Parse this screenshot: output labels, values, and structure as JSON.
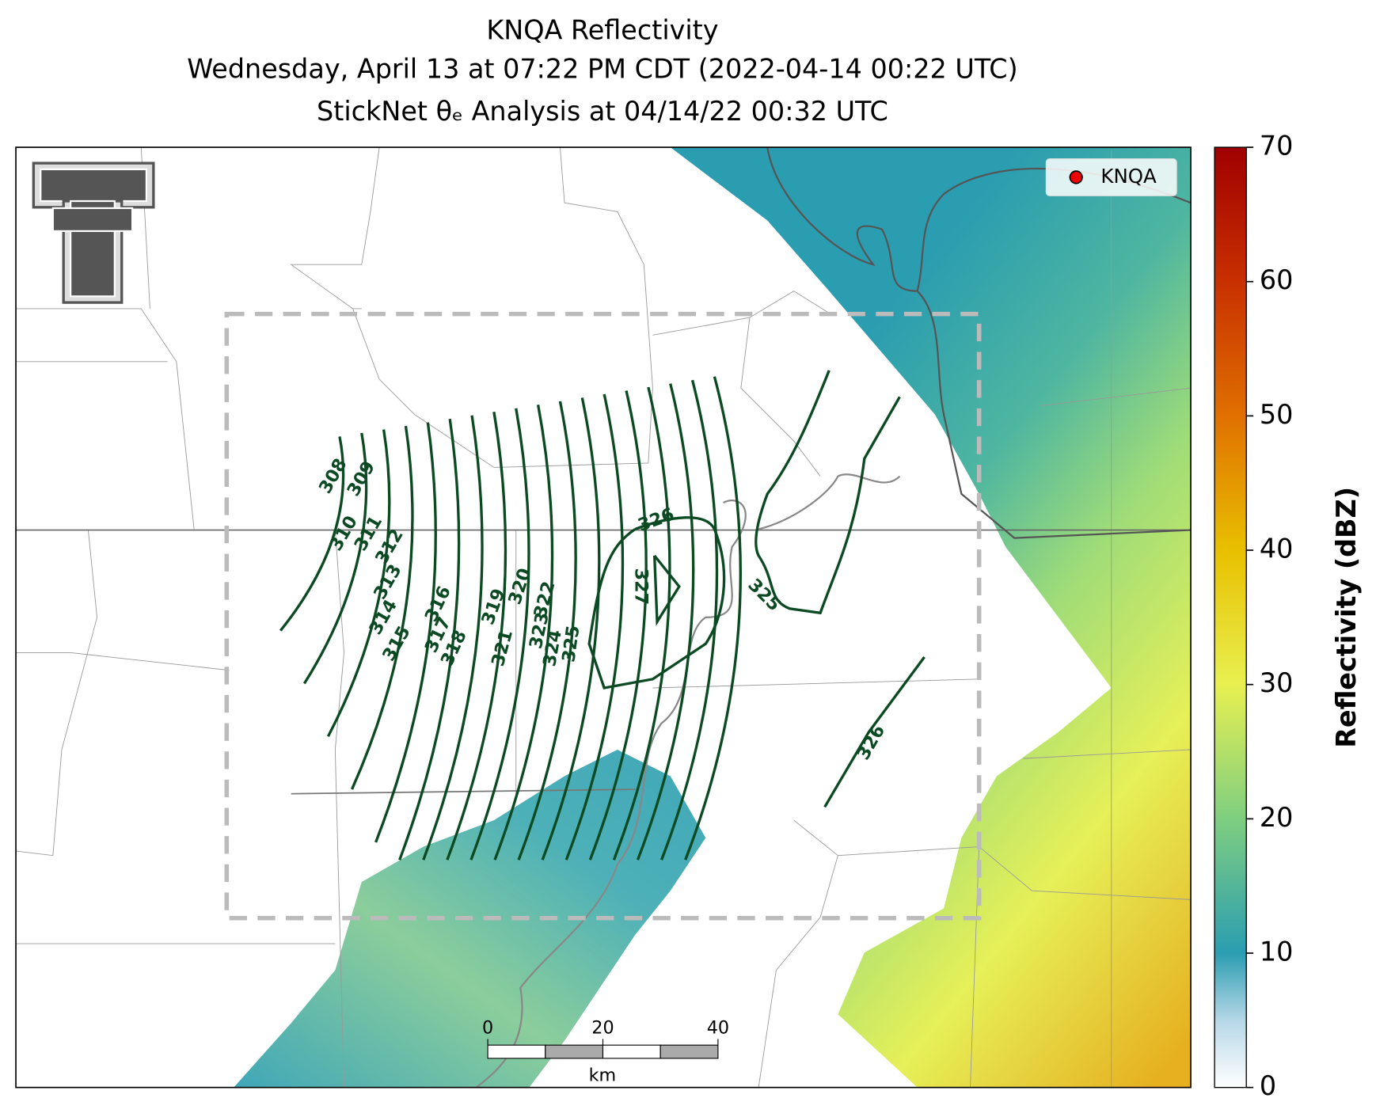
{
  "header": {
    "title_lines": [
      "KNQA Reflectivity",
      "Wednesday, April 13 at 07:22 PM CDT (2022-04-14 00:22 UTC)",
      "StickNet θₑ Analysis at 04/14/22 00:32 UTC"
    ]
  },
  "legend": {
    "label": "KNQA"
  },
  "colorbar": {
    "label": "Reflectivity (dBZ)",
    "lim": [
      0,
      70
    ],
    "ticks": [
      0,
      10,
      20,
      30,
      40,
      50,
      60,
      70
    ]
  },
  "scale_bar": {
    "ticks": [
      0,
      20,
      40
    ],
    "unit": "km"
  },
  "contours": {
    "levels": [
      308,
      309,
      310,
      311,
      312,
      313,
      314,
      315,
      316,
      317,
      318,
      319,
      320,
      321,
      322,
      323,
      324,
      325,
      326,
      327
    ]
  }
}
